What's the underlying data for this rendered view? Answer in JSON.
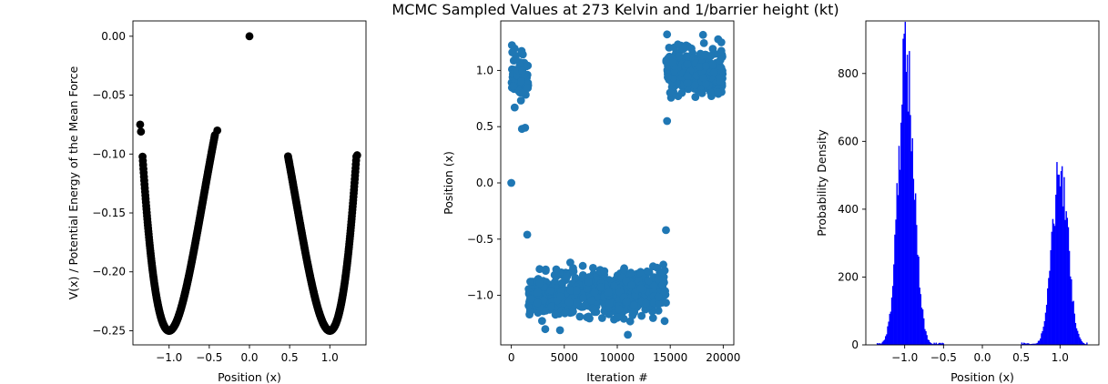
{
  "figure": {
    "title": "MCMC Sampled Values at 273 Kelvin and 1/barrier height (kt)"
  },
  "chart_data": [
    {
      "type": "scatter",
      "xlabel": "Position (x)",
      "ylabel": "V(x) / Potential Energy of the Mean Force",
      "xlim": [
        -1.45,
        1.45
      ],
      "ylim": [
        -0.262,
        0.013
      ],
      "xticks": [
        -1.0,
        -0.5,
        0.0,
        0.5,
        1.0
      ],
      "xtick_labels": [
        "−1.0",
        "−0.5",
        "0.0",
        "0.5",
        "1.0"
      ],
      "yticks": [
        0.0,
        -0.05,
        -0.1,
        -0.15,
        -0.2,
        -0.25
      ],
      "ytick_labels": [
        "0.00",
        "−0.05",
        "−0.10",
        "−0.15",
        "−0.20",
        "−0.25"
      ],
      "marker_color": "#000000",
      "curve": "V(x) = x^4/4 - x^2/2",
      "x_ranges": [
        [
          -1.33,
          -0.43
        ],
        [
          0.48,
          1.33
        ]
      ],
      "extra_points": [
        [
          0.0,
          0.0
        ],
        [
          -1.36,
          -0.075
        ],
        [
          -1.35,
          -0.081
        ],
        [
          -0.4,
          -0.08
        ],
        [
          1.34,
          -0.101
        ],
        [
          0.49,
          -0.106
        ]
      ],
      "grid": false
    },
    {
      "type": "scatter",
      "xlabel": "Iteration #",
      "ylabel": "Position (x)",
      "xlim": [
        -1000,
        21000
      ],
      "ylim": [
        -1.44,
        1.44
      ],
      "xticks": [
        0,
        5000,
        10000,
        15000,
        20000
      ],
      "xtick_labels": [
        "0",
        "5000",
        "10000",
        "15000",
        "20000"
      ],
      "yticks": [
        1.0,
        0.5,
        0.0,
        -0.5,
        -1.0
      ],
      "ytick_labels": [
        "1.0",
        "0.5",
        "0.0",
        "−0.5",
        "−1.0"
      ],
      "marker_color": "#1f77b4",
      "segments": [
        {
          "x_start": 0,
          "x_end": 1600,
          "center": 0.95,
          "spread": 0.1
        },
        {
          "x_start": 1600,
          "x_end": 14600,
          "center": -0.98,
          "spread": 0.1
        },
        {
          "x_start": 14600,
          "x_end": 20000,
          "center": 1.0,
          "spread": 0.1
        }
      ],
      "extra_points": [
        [
          0,
          0.0
        ],
        [
          1500,
          -0.46
        ],
        [
          14600,
          -0.42
        ],
        [
          14700,
          1.32
        ],
        [
          14700,
          0.55
        ],
        [
          1000,
          0.48
        ],
        [
          1300,
          0.49
        ],
        [
          3200,
          -1.3
        ],
        [
          11000,
          -1.35
        ]
      ],
      "grid": false
    },
    {
      "type": "histogram",
      "xlabel": "Position (x)",
      "ylabel": "Probability Density",
      "xlim": [
        -1.5,
        1.5
      ],
      "ylim": [
        0,
        955
      ],
      "xticks": [
        -1.0,
        -0.5,
        0.0,
        0.5,
        1.0
      ],
      "xtick_labels": [
        "−1.0",
        "−0.5",
        "0.0",
        "0.5",
        "1.0"
      ],
      "yticks": [
        0,
        200,
        400,
        600,
        800
      ],
      "ytick_labels": [
        "0",
        "200",
        "400",
        "600",
        "800"
      ],
      "bar_color": "#0000ff",
      "bin_width": 0.0133,
      "peaks": [
        {
          "center": -0.98,
          "peak": 900,
          "spread": 0.1,
          "from": -1.36,
          "to": -0.5
        },
        {
          "center": 1.0,
          "peak": 560,
          "spread": 0.1,
          "from": 0.5,
          "to": 1.34
        }
      ],
      "grid": false
    }
  ]
}
